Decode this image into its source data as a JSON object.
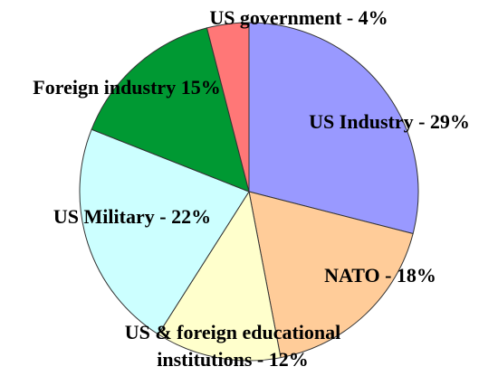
{
  "chart_data": {
    "type": "pie",
    "categories": [
      "US Industry - 29%",
      "NATO - 18%",
      "US & foreign educational institutions - 12%",
      "US Military - 22%",
      "Foreign industry 15%",
      "US government - 4%"
    ],
    "values": [
      29,
      18,
      12,
      22,
      15,
      4
    ],
    "colors": [
      "#9999ff",
      "#ffcc99",
      "#ffffcc",
      "#ccffff",
      "#009933",
      "#ff7777"
    ]
  }
}
